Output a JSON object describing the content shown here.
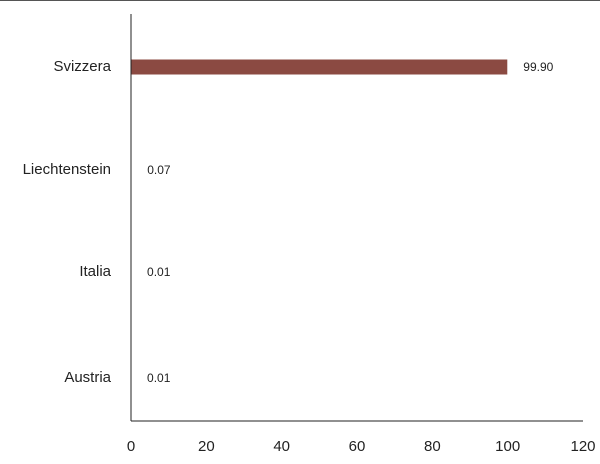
{
  "chart_data": {
    "type": "bar",
    "orientation": "horizontal",
    "title": "",
    "xlabel": "",
    "ylabel": "",
    "categories": [
      "Svizzera",
      "Liechtenstein",
      "Italia",
      "Austria"
    ],
    "values": [
      99.9,
      0.07,
      0.01,
      0.01
    ],
    "value_labels": [
      "99.90",
      "0.07",
      "0.01",
      "0.01"
    ],
    "xlim": [
      0,
      120
    ],
    "x_ticks": [
      "0",
      "20",
      "40",
      "60",
      "80",
      "100",
      "120"
    ],
    "grid": false,
    "legend": "none",
    "bar_color": "#8B4A42"
  }
}
